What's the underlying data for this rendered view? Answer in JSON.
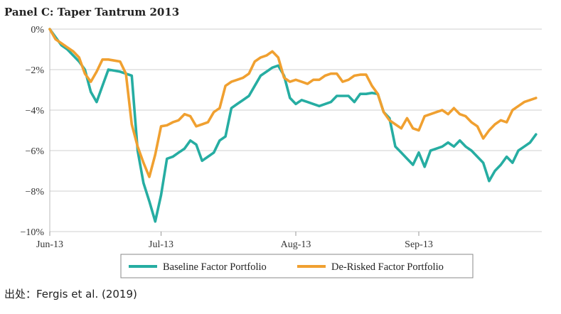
{
  "chart_data": {
    "type": "line",
    "title": "Panel C: Taper Tantrum 2013",
    "xlabel": "",
    "ylabel": "",
    "x_ticks": [
      {
        "label": "Jun-13",
        "t": 0
      },
      {
        "label": "Jul-13",
        "t": 19
      },
      {
        "label": "Aug-13",
        "t": 42
      },
      {
        "label": "Sep-13",
        "t": 63
      }
    ],
    "x_range": [
      0,
      84
    ],
    "y_ticks": [
      {
        "label": "0%",
        "value": 0
      },
      {
        "label": "−2%",
        "value": -2
      },
      {
        "label": "−4%",
        "value": -4
      },
      {
        "label": "−6%",
        "value": -6
      },
      {
        "label": "−8%",
        "value": -8
      },
      {
        "label": "−10%",
        "value": -10
      }
    ],
    "ylim": [
      -10,
      0
    ],
    "grid": "horizontal",
    "legend_placement": "bottom",
    "series": [
      {
        "name": "Baseline Factor Portfolio",
        "color": "#26ada2",
        "points": [
          [
            0,
            0
          ],
          [
            1,
            -0.4
          ],
          [
            2,
            -0.8
          ],
          [
            3,
            -1.0
          ],
          [
            4,
            -1.3
          ],
          [
            5,
            -1.6
          ],
          [
            6,
            -2.0
          ],
          [
            7,
            -3.1
          ],
          [
            8,
            -3.6
          ],
          [
            9,
            -2.8
          ],
          [
            10,
            -2.0
          ],
          [
            11,
            -2.05
          ],
          [
            12,
            -2.1
          ],
          [
            13,
            -2.2
          ],
          [
            14,
            -2.3
          ],
          [
            15,
            -6.0
          ],
          [
            16,
            -7.6
          ],
          [
            17,
            -8.5
          ],
          [
            18,
            -9.5
          ],
          [
            19,
            -8.2
          ],
          [
            20,
            -6.4
          ],
          [
            21,
            -6.3
          ],
          [
            22,
            -6.1
          ],
          [
            23,
            -5.9
          ],
          [
            24,
            -5.5
          ],
          [
            25,
            -5.7
          ],
          [
            26,
            -6.5
          ],
          [
            27,
            -6.3
          ],
          [
            28,
            -6.1
          ],
          [
            29,
            -5.5
          ],
          [
            30,
            -5.3
          ],
          [
            31,
            -3.9
          ],
          [
            32,
            -3.7
          ],
          [
            33,
            -3.5
          ],
          [
            34,
            -3.3
          ],
          [
            35,
            -2.8
          ],
          [
            36,
            -2.3
          ],
          [
            37,
            -2.1
          ],
          [
            38,
            -1.9
          ],
          [
            39,
            -1.8
          ],
          [
            40,
            -2.3
          ],
          [
            41,
            -3.4
          ],
          [
            42,
            -3.7
          ],
          [
            43,
            -3.5
          ],
          [
            44,
            -3.6
          ],
          [
            45,
            -3.7
          ],
          [
            46,
            -3.8
          ],
          [
            47,
            -3.7
          ],
          [
            48,
            -3.6
          ],
          [
            49,
            -3.3
          ],
          [
            50,
            -3.3
          ],
          [
            51,
            -3.3
          ],
          [
            52,
            -3.6
          ],
          [
            53,
            -3.2
          ],
          [
            54,
            -3.2
          ],
          [
            55,
            -3.15
          ],
          [
            56,
            -3.2
          ],
          [
            57,
            -4.1
          ],
          [
            58,
            -4.4
          ],
          [
            59,
            -5.8
          ],
          [
            60,
            -6.1
          ],
          [
            61,
            -6.4
          ],
          [
            62,
            -6.7
          ],
          [
            63,
            -6.1
          ],
          [
            64,
            -6.8
          ],
          [
            65,
            -6.0
          ],
          [
            66,
            -5.9
          ],
          [
            67,
            -5.8
          ],
          [
            68,
            -5.6
          ],
          [
            69,
            -5.8
          ],
          [
            70,
            -5.5
          ],
          [
            71,
            -5.8
          ],
          [
            72,
            -6.0
          ],
          [
            73,
            -6.3
          ],
          [
            74,
            -6.6
          ],
          [
            75,
            -7.5
          ],
          [
            76,
            -7.0
          ],
          [
            77,
            -6.7
          ],
          [
            78,
            -6.3
          ],
          [
            79,
            -6.6
          ],
          [
            80,
            -6.0
          ],
          [
            81,
            -5.8
          ],
          [
            82,
            -5.6
          ],
          [
            83,
            -5.2
          ]
        ]
      },
      {
        "name": "De-Risked Factor Portfolio",
        "color": "#f0a030",
        "points": [
          [
            0,
            0
          ],
          [
            1,
            -0.5
          ],
          [
            2,
            -0.7
          ],
          [
            3,
            -0.9
          ],
          [
            4,
            -1.1
          ],
          [
            5,
            -1.4
          ],
          [
            6,
            -2.2
          ],
          [
            7,
            -2.6
          ],
          [
            8,
            -2.1
          ],
          [
            9,
            -1.5
          ],
          [
            10,
            -1.5
          ],
          [
            11,
            -1.55
          ],
          [
            12,
            -1.6
          ],
          [
            13,
            -2.2
          ],
          [
            14,
            -4.7
          ],
          [
            15,
            -5.8
          ],
          [
            16,
            -6.6
          ],
          [
            17,
            -7.3
          ],
          [
            18,
            -6.2
          ],
          [
            19,
            -4.8
          ],
          [
            20,
            -4.75
          ],
          [
            21,
            -4.6
          ],
          [
            22,
            -4.5
          ],
          [
            23,
            -4.2
          ],
          [
            24,
            -4.3
          ],
          [
            25,
            -4.8
          ],
          [
            26,
            -4.7
          ],
          [
            27,
            -4.6
          ],
          [
            28,
            -4.1
          ],
          [
            29,
            -3.9
          ],
          [
            30,
            -2.8
          ],
          [
            31,
            -2.6
          ],
          [
            32,
            -2.5
          ],
          [
            33,
            -2.4
          ],
          [
            34,
            -2.2
          ],
          [
            35,
            -1.6
          ],
          [
            36,
            -1.4
          ],
          [
            37,
            -1.3
          ],
          [
            38,
            -1.1
          ],
          [
            39,
            -1.4
          ],
          [
            40,
            -2.4
          ],
          [
            41,
            -2.6
          ],
          [
            42,
            -2.5
          ],
          [
            43,
            -2.6
          ],
          [
            44,
            -2.7
          ],
          [
            45,
            -2.5
          ],
          [
            46,
            -2.5
          ],
          [
            47,
            -2.3
          ],
          [
            48,
            -2.2
          ],
          [
            49,
            -2.2
          ],
          [
            50,
            -2.6
          ],
          [
            51,
            -2.5
          ],
          [
            52,
            -2.3
          ],
          [
            53,
            -2.25
          ],
          [
            54,
            -2.25
          ],
          [
            55,
            -2.8
          ],
          [
            56,
            -3.2
          ],
          [
            57,
            -4.1
          ],
          [
            58,
            -4.5
          ],
          [
            59,
            -4.7
          ],
          [
            60,
            -4.9
          ],
          [
            61,
            -4.4
          ],
          [
            62,
            -4.9
          ],
          [
            63,
            -5.0
          ],
          [
            64,
            -4.3
          ],
          [
            65,
            -4.2
          ],
          [
            66,
            -4.1
          ],
          [
            67,
            -4.0
          ],
          [
            68,
            -4.2
          ],
          [
            69,
            -3.9
          ],
          [
            70,
            -4.2
          ],
          [
            71,
            -4.3
          ],
          [
            72,
            -4.6
          ],
          [
            73,
            -4.8
          ],
          [
            74,
            -5.4
          ],
          [
            75,
            -5.0
          ],
          [
            76,
            -4.7
          ],
          [
            77,
            -4.5
          ],
          [
            78,
            -4.6
          ],
          [
            79,
            -4.0
          ],
          [
            80,
            -3.8
          ],
          [
            81,
            -3.6
          ],
          [
            82,
            -3.5
          ],
          [
            83,
            -3.4
          ]
        ]
      }
    ]
  },
  "source_note": "出处：Fergis et al. (2019)"
}
